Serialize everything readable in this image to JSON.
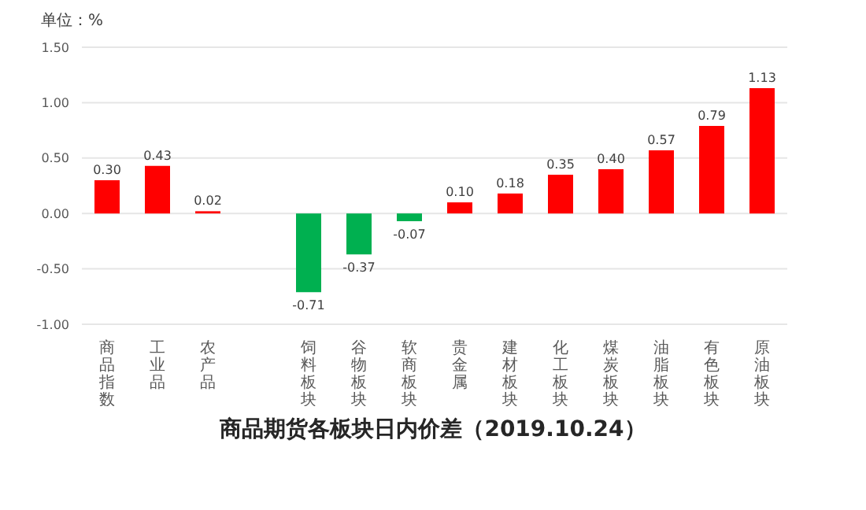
{
  "chart_data": {
    "type": "bar",
    "title": "商品期货各板块日内价差（2019.10.24）",
    "ylabel": "单位：%",
    "categories": [
      "商品指数",
      "工业品",
      "农产品",
      null,
      "饲料板块",
      "谷物板块",
      "软商板块",
      "贵金属",
      "建材板块",
      "化工板块",
      "煤炭板块",
      "油脂板块",
      "有色板块",
      "原油板块"
    ],
    "values": [
      0.3,
      0.43,
      0.02,
      null,
      -0.71,
      -0.37,
      -0.07,
      0.1,
      0.18,
      0.35,
      0.4,
      0.57,
      0.79,
      1.13
    ],
    "colors": [
      "#ff0000",
      "#ff0000",
      "#ff0000",
      null,
      "#00b050",
      "#00b050",
      "#00b050",
      "#ff0000",
      "#ff0000",
      "#ff0000",
      "#ff0000",
      "#ff0000",
      "#ff0000",
      "#ff0000"
    ],
    "value_labels": [
      "0.30",
      "0.43",
      "0.02",
      null,
      "-0.71",
      "-0.37",
      "-0.07",
      "0.10",
      "0.18",
      "0.35",
      "0.40",
      "0.57",
      "0.79",
      "1.13"
    ],
    "ylim": [
      -1,
      1.5
    ],
    "yticks": [
      {
        "value": -1,
        "label": "-1.00"
      },
      {
        "value": -0.5,
        "label": "-0.50"
      },
      {
        "value": 0,
        "label": "0.00"
      },
      {
        "value": 0.5,
        "label": "0.50"
      },
      {
        "value": 1,
        "label": "1.00"
      },
      {
        "value": 1.5,
        "label": "1.50"
      }
    ],
    "grid": "y",
    "legend": false
  }
}
